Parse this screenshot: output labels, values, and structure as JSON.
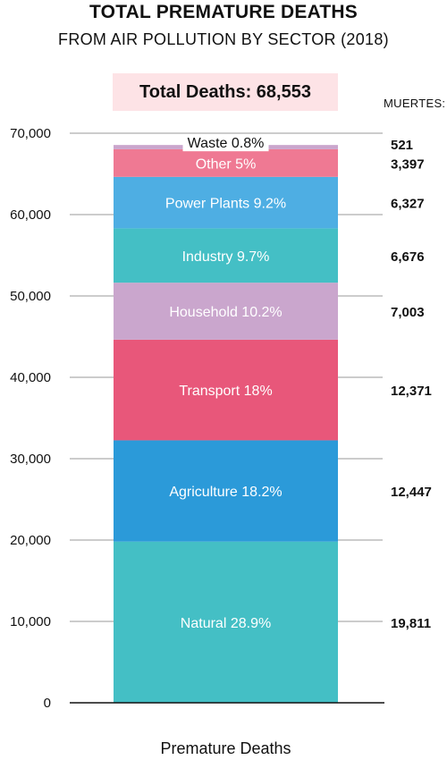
{
  "title": "TOTAL PREMATURE DEATHS",
  "subtitle": "FROM AIR POLLUTION BY SECTOR (2018)",
  "total_label": "Total Deaths: 68,553",
  "right_header": "MUERTES:",
  "chart_data": {
    "type": "bar",
    "stacked": true,
    "categories": [
      "Premature Deaths"
    ],
    "xlabel": "Premature Deaths",
    "ylabel": "",
    "ylim": [
      0,
      70000
    ],
    "yticks": [
      0,
      10000,
      20000,
      30000,
      40000,
      50000,
      60000,
      70000
    ],
    "ytick_labels": [
      "0",
      "10,000",
      "20,000",
      "30,000",
      "40,000",
      "50,000",
      "60,000",
      "70,000"
    ],
    "grid": true,
    "series": [
      {
        "name": "Natural",
        "pct_label": "Natural 28.9%",
        "value": 19811,
        "value_label": "19,811",
        "color": "#44bfc5"
      },
      {
        "name": "Agriculture",
        "pct_label": "Agriculture 18.2%",
        "value": 12447,
        "value_label": "12,447",
        "color": "#2b9ad9"
      },
      {
        "name": "Transport",
        "pct_label": "Transport 18%",
        "value": 12371,
        "value_label": "12,371",
        "color": "#e8577a"
      },
      {
        "name": "Household",
        "pct_label": "Household 10.2%",
        "value": 7003,
        "value_label": "7,003",
        "color": "#caa6cd"
      },
      {
        "name": "Industry",
        "pct_label": "Industry 9.7%",
        "value": 6676,
        "value_label": "6,676",
        "color": "#44bfc5"
      },
      {
        "name": "Power Plants",
        "pct_label": "Power Plants 9.2%",
        "value": 6327,
        "value_label": "6,327",
        "color": "#4eaee3"
      },
      {
        "name": "Other",
        "pct_label": "Other 5%",
        "value": 3397,
        "value_label": "3,397",
        "color": "#ef7993"
      },
      {
        "name": "Waste",
        "pct_label": "Waste 0.8%",
        "value": 521,
        "value_label": "521",
        "color": "#caa6cd"
      }
    ]
  }
}
